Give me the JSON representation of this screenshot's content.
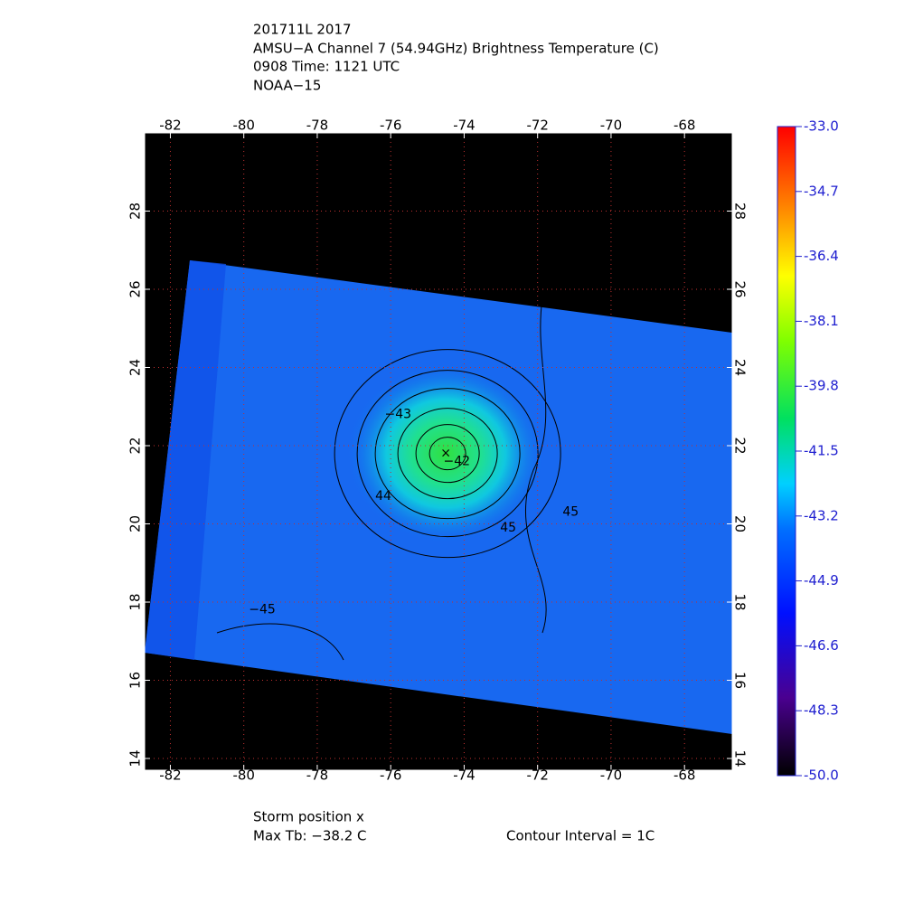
{
  "header": {
    "lines": [
      "201711L 2017",
      "AMSU−A Channel 7 (54.94GHz) Brightness Temperature (C)",
      "0908 Time: 1121 UTC",
      "NOAA−15"
    ]
  },
  "map": {
    "xlim": [
      -82.7,
      -66.7
    ],
    "ylim": [
      13.7,
      30
    ],
    "xticks": [
      -82,
      -80,
      -78,
      -76,
      -74,
      -72,
      -70,
      -68
    ],
    "yticks": [
      14,
      16,
      18,
      20,
      22,
      24,
      26,
      28
    ],
    "grid": true,
    "storm_center": {
      "lon": -74.5,
      "lat": 21.8
    },
    "contour_labels": [
      {
        "text": "−43",
        "lon": -75.8,
        "lat": 22.8
      },
      {
        "text": "44",
        "lon": -76.2,
        "lat": 20.7
      },
      {
        "text": "−42",
        "lon": -74.2,
        "lat": 21.6
      },
      {
        "text": "45",
        "lon": -72.8,
        "lat": 19.9
      },
      {
        "text": "45",
        "lon": -71.1,
        "lat": 20.3
      },
      {
        "text": "−45",
        "lon": -79.5,
        "lat": 17.8
      }
    ]
  },
  "colorbar": {
    "lim": [
      -50,
      -33
    ],
    "ticks": [
      {
        "value": -50,
        "label": "-50.0"
      },
      {
        "value": -48.3,
        "label": "-48.3"
      },
      {
        "value": -46.6,
        "label": "-46.6"
      },
      {
        "value": -44.9,
        "label": "-44.9"
      },
      {
        "value": -43.2,
        "label": "-43.2"
      },
      {
        "value": -41.5,
        "label": "-41.5"
      },
      {
        "value": -39.8,
        "label": "-39.8"
      },
      {
        "value": -38.1,
        "label": "-38.1"
      },
      {
        "value": -36.4,
        "label": "-36.4"
      },
      {
        "value": -34.7,
        "label": "-34.7"
      },
      {
        "value": -33,
        "label": "-33.0"
      }
    ]
  },
  "footer": {
    "storm": "Storm position x",
    "max_tb": "Max Tb: −38.2    C",
    "interval": "Contour Interval = 1C"
  }
}
